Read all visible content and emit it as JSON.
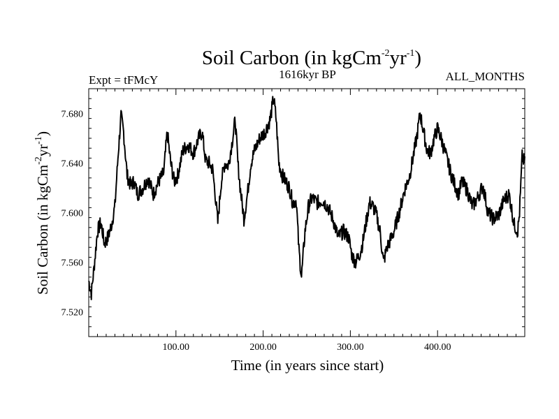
{
  "chart_data": {
    "type": "line",
    "title": {
      "base": "Soil Carbon (in kgCm",
      "exp1": "-2",
      "mid": "yr",
      "exp2": "-1",
      "end": ")"
    },
    "subtitle_left": "Expt = tFMcY",
    "subtitle_center": "1616kyr BP",
    "subtitle_right": "ALL_MONTHS",
    "xlabel": "Time (in years since start)",
    "ylabel": {
      "base": "Soil Carbon (in kgCm",
      "exp1": "-2",
      "mid": "yr",
      "exp2": "-1",
      "end": ")"
    },
    "xlim": [
      0,
      500
    ],
    "ylim": [
      7.5,
      7.7
    ],
    "x_ticks": [
      {
        "value": 100,
        "label": "100.00"
      },
      {
        "value": 200,
        "label": "200.00"
      },
      {
        "value": 300,
        "label": "300.00"
      },
      {
        "value": 400,
        "label": "400.00"
      }
    ],
    "y_ticks": [
      {
        "value": 7.52,
        "label": "7.520"
      },
      {
        "value": 7.56,
        "label": "7.560"
      },
      {
        "value": 7.6,
        "label": "7.600"
      },
      {
        "value": 7.64,
        "label": "7.640"
      },
      {
        "value": 7.68,
        "label": "7.680"
      }
    ],
    "series": [
      {
        "x": [
          0,
          3,
          6,
          10,
          14,
          18,
          22,
          26,
          30,
          34,
          37,
          40,
          44,
          48,
          52,
          56,
          62,
          68,
          74,
          80,
          86,
          90,
          94,
          98,
          102,
          108,
          114,
          120,
          126,
          130,
          134,
          138,
          142,
          145,
          148,
          152,
          156,
          160,
          164,
          168,
          171,
          174,
          178,
          182,
          186,
          190,
          196,
          202,
          208,
          212,
          215,
          218,
          222,
          226,
          230,
          234,
          238,
          241,
          244,
          248,
          252,
          256,
          262,
          268,
          274,
          280,
          286,
          292,
          298,
          302,
          306,
          310,
          314,
          318,
          322,
          326,
          330,
          334,
          338,
          342,
          346,
          350,
          356,
          362,
          368,
          372,
          376,
          380,
          384,
          388,
          392,
          396,
          400,
          404,
          408,
          412,
          416,
          420,
          424,
          428,
          434,
          440,
          446,
          452,
          458,
          464,
          470,
          476,
          482,
          488,
          492,
          494,
          497,
          500
        ],
        "y": [
          7.545,
          7.535,
          7.555,
          7.585,
          7.592,
          7.575,
          7.58,
          7.59,
          7.605,
          7.65,
          7.678,
          7.665,
          7.63,
          7.622,
          7.625,
          7.615,
          7.62,
          7.628,
          7.615,
          7.625,
          7.632,
          7.665,
          7.64,
          7.625,
          7.63,
          7.65,
          7.655,
          7.648,
          7.66,
          7.665,
          7.642,
          7.64,
          7.635,
          7.615,
          7.592,
          7.625,
          7.64,
          7.638,
          7.655,
          7.675,
          7.64,
          7.618,
          7.595,
          7.615,
          7.64,
          7.65,
          7.66,
          7.665,
          7.675,
          7.693,
          7.675,
          7.64,
          7.63,
          7.625,
          7.62,
          7.608,
          7.61,
          7.57,
          7.548,
          7.585,
          7.605,
          7.612,
          7.608,
          7.61,
          7.605,
          7.595,
          7.58,
          7.585,
          7.58,
          7.565,
          7.56,
          7.565,
          7.575,
          7.592,
          7.608,
          7.605,
          7.598,
          7.585,
          7.56,
          7.572,
          7.578,
          7.585,
          7.6,
          7.618,
          7.63,
          7.645,
          7.66,
          7.68,
          7.665,
          7.65,
          7.648,
          7.66,
          7.668,
          7.66,
          7.65,
          7.64,
          7.63,
          7.622,
          7.615,
          7.625,
          7.618,
          7.605,
          7.612,
          7.622,
          7.6,
          7.595,
          7.598,
          7.61,
          7.615,
          7.59,
          7.585,
          7.6,
          7.645,
          7.64
        ]
      }
    ],
    "line_color": "#000000",
    "grid": false
  }
}
